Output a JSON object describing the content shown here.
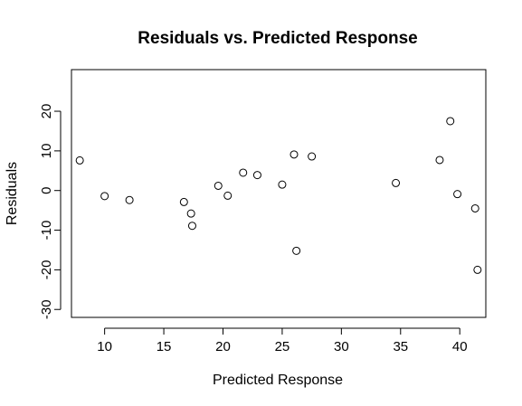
{
  "chart_data": {
    "type": "scatter",
    "title": "Residuals vs. Predicted Response",
    "xlabel": "Predicted Response",
    "ylabel": "Residuals",
    "xlim": [
      7.2,
      42.2
    ],
    "ylim": [
      -32,
      30.5
    ],
    "x_ticks": [
      10,
      15,
      20,
      25,
      30,
      35,
      40
    ],
    "y_ticks": [
      -30,
      -20,
      -10,
      0,
      10,
      20
    ],
    "x_tick_labels": [
      "10",
      "15",
      "20",
      "25",
      "30",
      "35",
      "40"
    ],
    "y_tick_labels": [
      "-30",
      "-20",
      "-10",
      "0",
      "10",
      "20"
    ],
    "grid": false,
    "legend": "none",
    "marker": "open-circle",
    "colors": {
      "marker": "#000000",
      "axis": "#000000",
      "background": "#ffffff"
    },
    "points": [
      {
        "x": 7.9,
        "y": 7.6
      },
      {
        "x": 10.0,
        "y": -1.4
      },
      {
        "x": 12.1,
        "y": -2.4
      },
      {
        "x": 16.7,
        "y": -2.9
      },
      {
        "x": 17.3,
        "y": -5.8
      },
      {
        "x": 17.4,
        "y": -8.9
      },
      {
        "x": 19.6,
        "y": 1.2
      },
      {
        "x": 20.4,
        "y": -1.3
      },
      {
        "x": 21.7,
        "y": 4.5
      },
      {
        "x": 22.9,
        "y": 3.9
      },
      {
        "x": 25.0,
        "y": 1.5
      },
      {
        "x": 26.0,
        "y": 9.1
      },
      {
        "x": 26.2,
        "y": -15.2
      },
      {
        "x": 27.5,
        "y": 8.6
      },
      {
        "x": 34.6,
        "y": 1.9
      },
      {
        "x": 38.3,
        "y": 7.7
      },
      {
        "x": 39.2,
        "y": 17.5
      },
      {
        "x": 39.8,
        "y": -0.9
      },
      {
        "x": 41.3,
        "y": -4.5
      },
      {
        "x": 41.5,
        "y": -20.0
      }
    ]
  }
}
